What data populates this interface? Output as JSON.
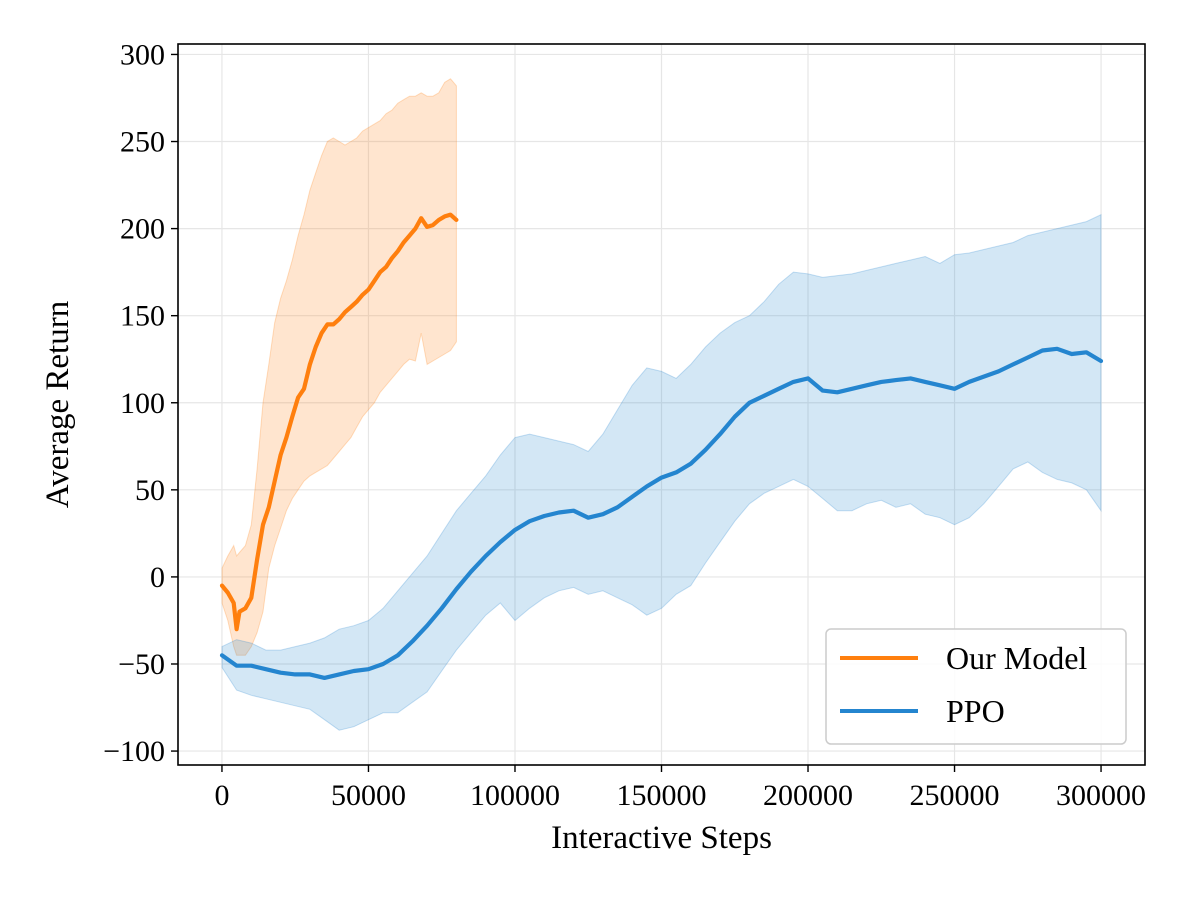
{
  "chart_data": {
    "type": "line",
    "title": "",
    "xlabel": "Interactive Steps",
    "ylabel": "Average Return",
    "xlim": [
      -15000,
      315000
    ],
    "ylim": [
      -108,
      306
    ],
    "xticks": [
      0,
      50000,
      100000,
      150000,
      200000,
      250000,
      300000
    ],
    "xtick_labels": [
      "0",
      "50000",
      "100000",
      "150000",
      "200000",
      "250000",
      "300000"
    ],
    "yticks": [
      -100,
      -50,
      0,
      50,
      100,
      150,
      200,
      250,
      300
    ],
    "ytick_labels": [
      "−100",
      "−50",
      "0",
      "50",
      "100",
      "150",
      "200",
      "250",
      "300"
    ],
    "grid": true,
    "legend_position": "lower-right",
    "series": [
      {
        "name": "Our Model",
        "color": "#ff7f0e",
        "band_color": "#ffd9b8",
        "x": [
          0,
          2000,
          4000,
          5000,
          6000,
          8000,
          10000,
          12000,
          14000,
          16000,
          18000,
          20000,
          22000,
          24000,
          26000,
          28000,
          30000,
          32000,
          34000,
          36000,
          38000,
          40000,
          42000,
          44000,
          46000,
          48000,
          50000,
          52000,
          54000,
          56000,
          58000,
          60000,
          62000,
          64000,
          66000,
          68000,
          70000,
          72000,
          74000,
          76000,
          78000,
          80000
        ],
        "y": [
          -5,
          -9,
          -15,
          -30,
          -20,
          -18,
          -12,
          10,
          30,
          40,
          55,
          70,
          80,
          92,
          103,
          108,
          122,
          132,
          140,
          145,
          145,
          148,
          152,
          155,
          158,
          162,
          165,
          170,
          175,
          178,
          183,
          187,
          192,
          196,
          200,
          206,
          201,
          202,
          205,
          207,
          208,
          205
        ],
        "upper": [
          5,
          12,
          18,
          12,
          14,
          18,
          30,
          62,
          100,
          122,
          146,
          160,
          170,
          182,
          196,
          208,
          222,
          232,
          242,
          250,
          252,
          250,
          248,
          250,
          252,
          256,
          258,
          260,
          262,
          266,
          268,
          272,
          274,
          276,
          276,
          278,
          276,
          276,
          278,
          284,
          286,
          282
        ],
        "lower": [
          -15,
          -25,
          -40,
          -45,
          -45,
          -45,
          -40,
          -32,
          -20,
          5,
          18,
          28,
          38,
          45,
          50,
          55,
          58,
          60,
          62,
          64,
          68,
          72,
          76,
          80,
          86,
          92,
          96,
          100,
          106,
          110,
          114,
          118,
          122,
          125,
          124,
          140,
          122,
          124,
          126,
          128,
          130,
          135
        ]
      },
      {
        "name": "PPO",
        "color": "#2485cf",
        "band_color": "#cfe3f4",
        "x": [
          0,
          5000,
          10000,
          15000,
          20000,
          25000,
          30000,
          35000,
          40000,
          45000,
          50000,
          55000,
          60000,
          65000,
          70000,
          75000,
          80000,
          85000,
          90000,
          95000,
          100000,
          105000,
          110000,
          115000,
          120000,
          125000,
          130000,
          135000,
          140000,
          145000,
          150000,
          155000,
          160000,
          165000,
          170000,
          175000,
          180000,
          185000,
          190000,
          195000,
          200000,
          205000,
          210000,
          215000,
          220000,
          225000,
          230000,
          235000,
          240000,
          245000,
          250000,
          255000,
          260000,
          265000,
          270000,
          275000,
          280000,
          285000,
          290000,
          295000,
          300000
        ],
        "y": [
          -45,
          -51,
          -51,
          -53,
          -55,
          -56,
          -56,
          -58,
          -56,
          -54,
          -53,
          -50,
          -45,
          -37,
          -28,
          -18,
          -7,
          3,
          12,
          20,
          27,
          32,
          35,
          37,
          38,
          34,
          36,
          40,
          46,
          52,
          57,
          60,
          65,
          73,
          82,
          92,
          100,
          104,
          108,
          112,
          114,
          107,
          106,
          108,
          110,
          112,
          113,
          114,
          112,
          110,
          108,
          112,
          115,
          118,
          122,
          126,
          130,
          131,
          128,
          129,
          124
        ],
        "upper": [
          -40,
          -36,
          -38,
          -42,
          -42,
          -40,
          -38,
          -35,
          -30,
          -28,
          -25,
          -18,
          -8,
          2,
          12,
          25,
          38,
          48,
          58,
          70,
          80,
          82,
          80,
          78,
          76,
          72,
          82,
          96,
          110,
          120,
          118,
          114,
          122,
          132,
          140,
          146,
          150,
          158,
          168,
          175,
          174,
          172,
          173,
          174,
          176,
          178,
          180,
          182,
          184,
          180,
          185,
          186,
          188,
          190,
          192,
          196,
          198,
          200,
          202,
          204,
          208
        ],
        "lower": [
          -52,
          -65,
          -68,
          -70,
          -72,
          -74,
          -76,
          -82,
          -88,
          -86,
          -82,
          -78,
          -78,
          -72,
          -66,
          -54,
          -42,
          -32,
          -22,
          -15,
          -25,
          -18,
          -12,
          -8,
          -6,
          -10,
          -8,
          -12,
          -16,
          -22,
          -18,
          -10,
          -5,
          8,
          20,
          32,
          42,
          48,
          52,
          56,
          52,
          45,
          38,
          38,
          42,
          44,
          40,
          42,
          36,
          34,
          30,
          34,
          42,
          52,
          62,
          66,
          60,
          56,
          54,
          50,
          38
        ]
      }
    ]
  }
}
